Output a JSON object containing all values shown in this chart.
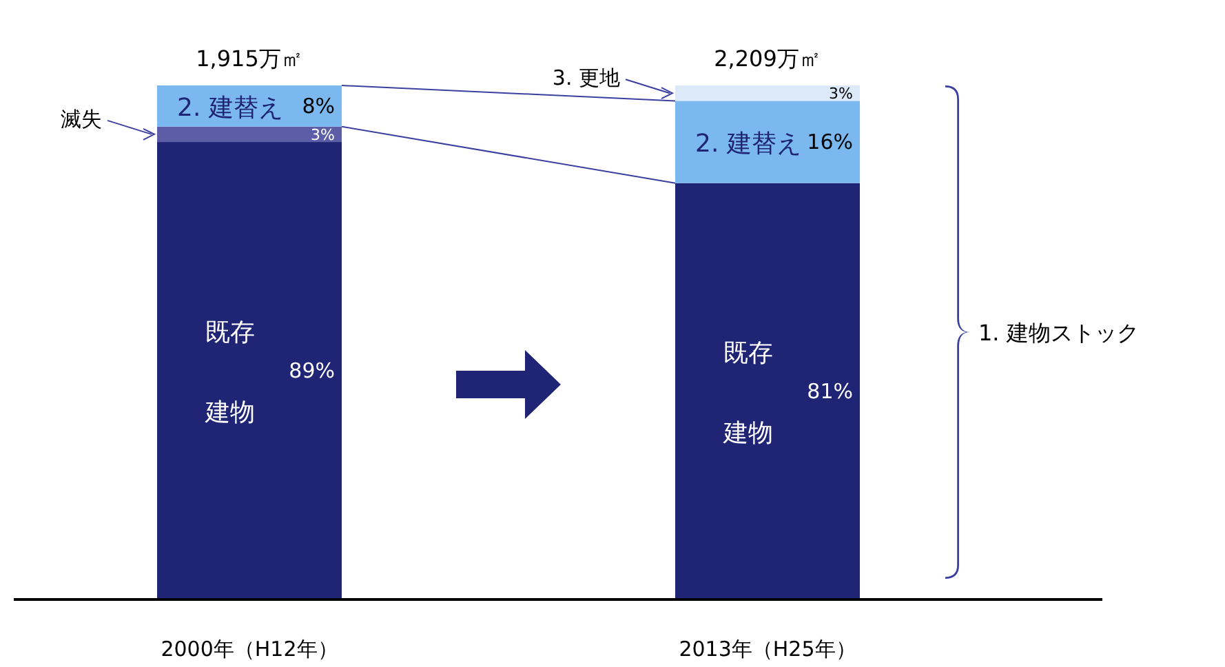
{
  "chart_data": {
    "type": "bar",
    "stacked": true,
    "categories": [
      "2000年（H12年）",
      "2013年（H25年）"
    ],
    "series": [
      {
        "name": "既存建物",
        "color": "#1f2474",
        "values": [
          89,
          81
        ],
        "value_labels": [
          "89%",
          "81%"
        ]
      },
      {
        "name": "滅失",
        "color": "#5b5ea6",
        "values": [
          3,
          null
        ],
        "value_labels": [
          "3%",
          null
        ]
      },
      {
        "name": "2. 建替え",
        "color": "#7ab8ef",
        "values": [
          8,
          16
        ],
        "value_labels": [
          "8%",
          "16%"
        ]
      },
      {
        "name": "3. 更地",
        "color": "#dbe9f8",
        "values": [
          null,
          3
        ],
        "value_labels": [
          null,
          "3%"
        ]
      }
    ],
    "annotations": [
      {
        "text": "1,915万㎡",
        "x": "2000年（H12年）",
        "y": 100
      },
      {
        "text": "2,209万㎡",
        "x": "2013年（H25年）",
        "y": 100
      },
      "1. 建物ストック"
    ]
  }
}
